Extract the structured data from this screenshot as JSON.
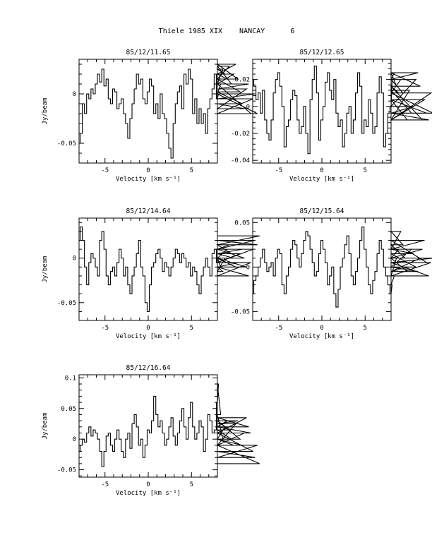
{
  "page": {
    "title": "Thiele 1985 XIX    NANCAY      6"
  },
  "chart_data": [
    {
      "type": "line",
      "title": "85/12/11.65",
      "xlabel": "Velocity [km s⁻¹]",
      "ylabel": "Jy/beam",
      "xlim": [
        -8,
        8
      ],
      "ylim": [
        -0.07,
        0.035
      ],
      "xticks": [
        -5,
        0,
        5
      ],
      "yticks": [
        0,
        -0.05
      ],
      "ytick_labels": [
        "0",
        "-0.05"
      ],
      "x_start": -8,
      "x_step": 0.25,
      "values": [
        -0.05,
        -0.04,
        -0.01,
        -0.02,
        0.0,
        -0.005,
        0.005,
        0.0,
        0.01,
        0.02,
        0.012,
        0.025,
        0.008,
        0.015,
        -0.005,
        -0.01,
        0.005,
        0.002,
        -0.015,
        -0.01,
        -0.005,
        -0.02,
        -0.03,
        -0.045,
        -0.025,
        -0.01,
        0.005,
        0.02,
        0.01,
        0.015,
        -0.005,
        -0.01,
        0.002,
        0.015,
        0.008,
        -0.02,
        -0.01,
        -0.025,
        0.0,
        -0.02,
        -0.025,
        -0.04,
        -0.055,
        -0.065,
        -0.03,
        -0.01,
        0.002,
        0.008,
        -0.015,
        0.02,
        0.01,
        0.025,
        0.015,
        -0.02,
        -0.005,
        -0.03,
        -0.015,
        -0.03,
        -0.02,
        -0.04,
        -0.015,
        -0.005,
        0.005,
        0.02,
        -0.005,
        0.0,
        0.01,
        0.025,
        0.02,
        0.015,
        0.028,
        0.01,
        0.02,
        0.03,
        0.015,
        0.002,
        -0.01,
        -0.015,
        0.005,
        0.01,
        -0.02,
        -0.005,
        0.0,
        -0.02
      ]
    },
    {
      "type": "line",
      "title": "85/12/12.65",
      "xlabel": "Velocity [km s⁻¹]",
      "ylabel": "",
      "xlim": [
        -8,
        8
      ],
      "ylim": [
        -0.042,
        0.035
      ],
      "xticks": [
        -5,
        0,
        5
      ],
      "yticks": [
        0.02,
        0,
        -0.02,
        -0.04
      ],
      "ytick_labels": [
        "0.02",
        "0",
        "-0.02",
        "-0.04"
      ],
      "x_start": -8,
      "x_step": 0.25,
      "values": [
        0.02,
        0.015,
        0.005,
        0.01,
        -0.005,
        0.012,
        -0.01,
        -0.02,
        -0.025,
        -0.01,
        0.01,
        0.02,
        0.025,
        0.015,
        0.0,
        -0.03,
        -0.015,
        -0.01,
        0.005,
        0.012,
        0.008,
        -0.01,
        -0.02,
        -0.015,
        0.0,
        -0.02,
        -0.035,
        0.005,
        0.02,
        0.03,
        0.01,
        -0.025,
        -0.01,
        0.0,
        0.018,
        0.025,
        0.012,
        0.005,
        0.02,
        -0.005,
        -0.015,
        -0.01,
        -0.03,
        -0.02,
        -0.005,
        0.0,
        -0.02,
        -0.01,
        0.01,
        0.025,
        0.015,
        -0.02,
        -0.01,
        -0.015,
        0.005,
        -0.005,
        -0.02,
        -0.015,
        0.01,
        0.022,
        0.01,
        -0.03,
        -0.02,
        -0.005,
        0.0,
        0.02,
        0.025,
        0.015,
        0.01,
        0.02,
        0.01,
        0.005,
        -0.01,
        0.012,
        -0.005,
        0.0,
        0.02,
        0.025,
        0.015,
        -0.01,
        0.005,
        -0.005,
        -0.01,
        0.01,
        -0.005
      ]
    },
    {
      "type": "line",
      "title": "85/12/14.64",
      "xlabel": "Velocity [km s⁻¹]",
      "ylabel": "Jy/beam",
      "xlim": [
        -8,
        8
      ],
      "ylim": [
        -0.07,
        0.045
      ],
      "xticks": [
        -5,
        0,
        5
      ],
      "yticks": [
        0,
        -0.05
      ],
      "ytick_labels": [
        "0",
        "-0.05"
      ],
      "x_start": -8,
      "x_step": 0.25,
      "values": [
        0.02,
        0.035,
        0.02,
        -0.01,
        -0.03,
        -0.005,
        0.005,
        0.0,
        -0.01,
        -0.02,
        0.02,
        0.03,
        0.01,
        -0.02,
        -0.03,
        -0.015,
        -0.01,
        -0.02,
        -0.005,
        0.01,
        0.0,
        -0.02,
        -0.01,
        -0.03,
        -0.04,
        -0.02,
        -0.01,
        0.005,
        0.02,
        -0.01,
        -0.02,
        -0.05,
        -0.06,
        -0.03,
        -0.01,
        -0.005,
        0.005,
        0.01,
        0.0,
        -0.015,
        -0.005,
        -0.01,
        -0.02,
        -0.01,
        0.0,
        0.01,
        0.005,
        -0.005,
        0.005,
        0.0,
        -0.01,
        -0.005,
        -0.02,
        -0.01,
        -0.015,
        -0.03,
        -0.04,
        -0.02,
        -0.01,
        0.0,
        -0.01,
        -0.02,
        0.005,
        0.01,
        -0.005,
        0.0,
        -0.01,
        -0.015,
        0.0,
        0.01,
        0.015,
        0.005,
        0.0,
        -0.01,
        -0.005,
        0.005,
        0.01,
        0.0,
        -0.01,
        -0.02,
        -0.005,
        0.01,
        0.02,
        0.015,
        0.025
      ]
    },
    {
      "type": "line",
      "title": "85/12/15.64",
      "xlabel": "Velocity [km s⁻¹]",
      "ylabel": "",
      "xlim": [
        -8,
        8
      ],
      "ylim": [
        -0.06,
        0.055
      ],
      "xticks": [
        -5,
        0,
        5
      ],
      "yticks": [
        0.05,
        0,
        -0.05
      ],
      "ytick_labels": [
        "0.05",
        "0",
        "-0.05"
      ],
      "x_start": -8,
      "x_step": 0.25,
      "values": [
        -0.03,
        -0.015,
        -0.01,
        0.0,
        0.01,
        0.02,
        0.005,
        -0.005,
        0.0,
        0.005,
        -0.01,
        0.01,
        0.02,
        0.015,
        -0.02,
        -0.03,
        -0.01,
        0.0,
        0.02,
        0.03,
        0.025,
        0.01,
        0.0,
        0.015,
        0.03,
        0.04,
        0.035,
        0.02,
        0.005,
        -0.01,
        -0.005,
        0.015,
        0.03,
        0.02,
        0.005,
        -0.02,
        -0.01,
        0.0,
        -0.03,
        -0.045,
        -0.025,
        0.0,
        0.01,
        0.025,
        0.035,
        0.015,
        -0.01,
        -0.02,
        -0.005,
        0.01,
        0.03,
        0.045,
        0.02,
        0.0,
        -0.02,
        -0.03,
        -0.015,
        -0.005,
        0.015,
        0.03,
        0.02,
        0.0,
        -0.01,
        -0.02,
        -0.03,
        -0.02,
        -0.01,
        0.01,
        0.02,
        0.04,
        0.025,
        0.01,
        -0.005,
        0.0,
        0.02,
        0.015,
        0.0,
        -0.005,
        0.01,
        0.02,
        0.03,
        0.005,
        -0.01,
        0.005,
        0.01
      ]
    },
    {
      "type": "line",
      "title": "85/12/16.64",
      "xlabel": "Velocity [km s⁻¹]",
      "ylabel": "Jy/beam",
      "xlim": [
        -8,
        8
      ],
      "ylim": [
        -0.062,
        0.105
      ],
      "xticks": [
        -5,
        0,
        5
      ],
      "yticks": [
        0.1,
        0.05,
        0,
        -0.05
      ],
      "ytick_labels": [
        "0.1",
        "0.05",
        "0",
        "-0.05"
      ],
      "x_start": -8,
      "x_step": 0.25,
      "values": [
        -0.02,
        -0.01,
        0.0,
        -0.005,
        0.01,
        0.02,
        0.005,
        0.015,
        0.01,
        0.0,
        -0.02,
        -0.045,
        -0.02,
        0.005,
        0.01,
        -0.01,
        -0.02,
        0.0,
        0.015,
        0.0,
        -0.02,
        -0.03,
        0.0,
        0.01,
        -0.015,
        0.025,
        0.04,
        0.02,
        -0.01,
        0.0,
        -0.03,
        -0.01,
        0.015,
        0.01,
        0.03,
        0.07,
        0.04,
        0.02,
        0.03,
        0.01,
        -0.01,
        0.0,
        0.02,
        0.035,
        0.005,
        -0.01,
        0.01,
        0.03,
        0.05,
        0.02,
        0.0,
        0.035,
        0.06,
        0.02,
        0.0,
        0.01,
        0.03,
        0.02,
        -0.02,
        0.0,
        0.04,
        0.03,
        0.01,
        0.015,
        0.06,
        0.09,
        0.04,
        0.0,
        0.02,
        0.03,
        0.015,
        0.0,
        -0.01,
        0.025,
        0.03,
        0.0,
        -0.01,
        0.01,
        0.035,
        0.02,
        0.01,
        -0.02,
        -0.03,
        -0.01,
        -0.04
      ]
    }
  ]
}
